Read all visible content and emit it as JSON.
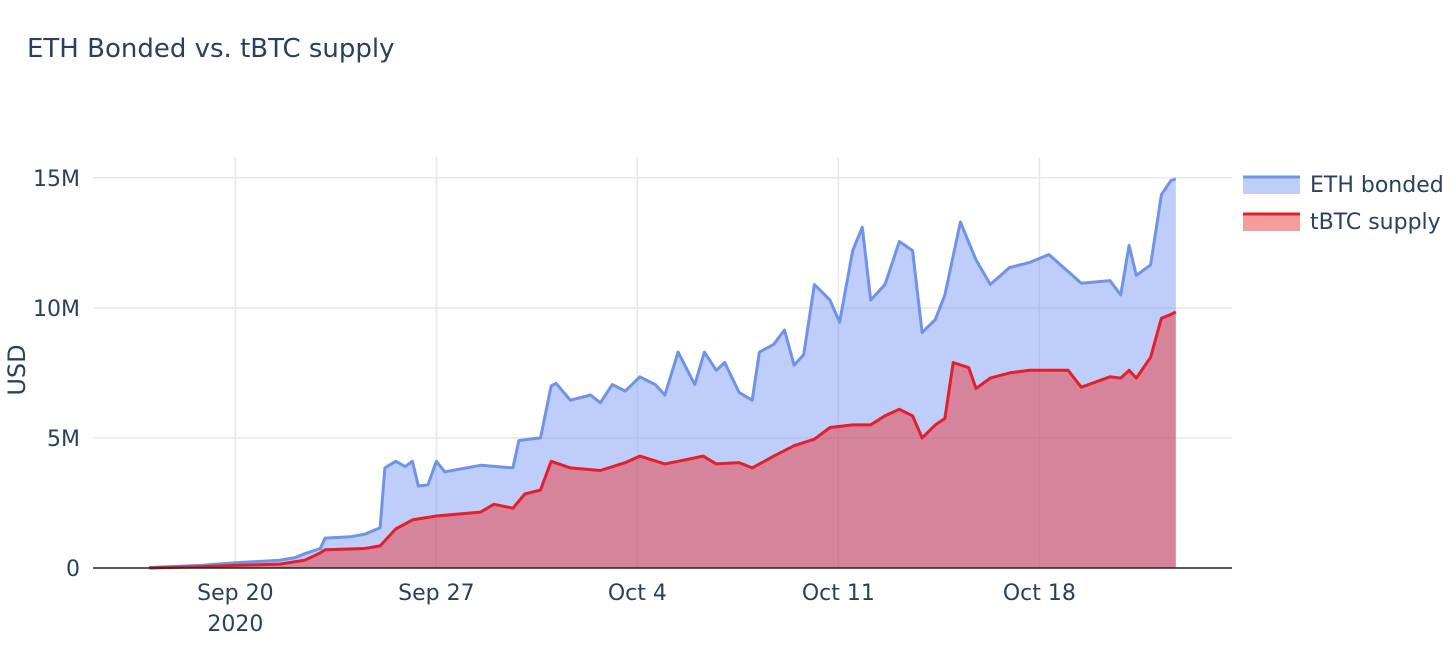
{
  "chart_data": {
    "type": "area",
    "title": "ETH Bonded vs. tBTC supply",
    "y_label": "USD",
    "grid": true,
    "legend": "top-right",
    "xlim": [
      "2020-09-15T01:00",
      "2020-10-24T17:00"
    ],
    "xticks": [
      {
        "value": "2020-09-20T00:00",
        "label": "Sep 20\n2020"
      },
      {
        "value": "2020-09-27T00:00",
        "label": "Sep 27"
      },
      {
        "value": "2020-10-04T00:00",
        "label": "Oct 4"
      },
      {
        "value": "2020-10-11T00:00",
        "label": "Oct 11"
      },
      {
        "value": "2020-10-18T00:00",
        "label": "Oct 18"
      }
    ],
    "ylim": [
      0,
      15800000
    ],
    "yticks": [
      0,
      {
        "value": 5000000,
        "label": "5M"
      },
      {
        "value": 10000000,
        "label": "10M"
      },
      {
        "value": 15000000,
        "label": "15M"
      }
    ],
    "series": [
      {
        "name": "ETH bonded",
        "color": "#6f93ea",
        "fill": "rgba(110,145,245,0.45)",
        "x": [
          "2020-09-17T00:00",
          "2020-09-18T19:00",
          "2020-09-20T00:00",
          "2020-09-21T13:00",
          "2020-09-22T02:00",
          "2020-09-22T10:00",
          "2020-09-22T23:00",
          "2020-09-23T03:00",
          "2020-09-24T00:00",
          "2020-09-24T12:00",
          "2020-09-25T01:00",
          "2020-09-25T05:00",
          "2020-09-25T14:00",
          "2020-09-25T22:00",
          "2020-09-26T04:00",
          "2020-09-26T09:00",
          "2020-09-26T17:00",
          "2020-09-27T00:00",
          "2020-09-27T07:00",
          "2020-09-28T13:00",
          "2020-09-29T16:00",
          "2020-09-29T21:00",
          "2020-09-30T15:00",
          "2020-10-01T00:00",
          "2020-10-01T04:00",
          "2020-10-01T16:00",
          "2020-10-02T09:00",
          "2020-10-02T17:00",
          "2020-10-03T03:00",
          "2020-10-03T14:00",
          "2020-10-04T02:00",
          "2020-10-04T15:00",
          "2020-10-04T23:00",
          "2020-10-05T10:00",
          "2020-10-06T00:00",
          "2020-10-06T08:00",
          "2020-10-06T18:00",
          "2020-10-07T01:00",
          "2020-10-07T13:00",
          "2020-10-08T00:00",
          "2020-10-08T06:00",
          "2020-10-08T18:00",
          "2020-10-09T03:00",
          "2020-10-09T11:00",
          "2020-10-09T19:00",
          "2020-10-10T04:00",
          "2020-10-10T17:00",
          "2020-10-11T01:00",
          "2020-10-11T12:00",
          "2020-10-11T20:00",
          "2020-10-12T03:00",
          "2020-10-12T15:00",
          "2020-10-13T03:00",
          "2020-10-13T14:00",
          "2020-10-13T22:00",
          "2020-10-14T09:00",
          "2020-10-14T17:00",
          "2020-10-15T06:00",
          "2020-10-15T19:00",
          "2020-10-16T07:00",
          "2020-10-16T23:00",
          "2020-10-17T16:00",
          "2020-10-18T08:00",
          "2020-10-19T11:00",
          "2020-10-20T11:00",
          "2020-10-20T20:00",
          "2020-10-21T03:00",
          "2020-10-21T09:00",
          "2020-10-21T21:00",
          "2020-10-22T06:00",
          "2020-10-22T14:00",
          "2020-10-22T18:00"
        ],
        "values": [
          20000,
          100000,
          200000,
          300000,
          400000,
          550000,
          750000,
          1150000,
          1200000,
          1300000,
          1550000,
          3850000,
          4100000,
          3900000,
          4100000,
          3150000,
          3200000,
          4100000,
          3700000,
          3950000,
          3850000,
          4900000,
          5000000,
          7000000,
          7100000,
          6450000,
          6650000,
          6350000,
          7050000,
          6800000,
          7350000,
          7050000,
          6650000,
          8300000,
          7050000,
          8300000,
          7600000,
          7900000,
          6750000,
          6450000,
          8300000,
          8600000,
          9150000,
          7800000,
          8200000,
          10900000,
          10300000,
          9450000,
          12200000,
          13100000,
          10300000,
          10900000,
          12550000,
          12200000,
          9050000,
          9550000,
          10500000,
          13300000,
          11850000,
          10900000,
          11550000,
          11750000,
          12050000,
          10950000,
          11050000,
          10500000,
          12400000,
          11250000,
          11650000,
          14350000,
          14900000,
          14950000
        ]
      },
      {
        "name": "tBTC supply",
        "color": "#e3202a",
        "fill": "rgba(235,60,60,0.5)",
        "x": [
          "2020-09-17T00:00",
          "2020-09-18T19:00",
          "2020-09-20T00:00",
          "2020-09-21T13:00",
          "2020-09-22T10:00",
          "2020-09-22T23:00",
          "2020-09-23T03:00",
          "2020-09-24T12:00",
          "2020-09-25T01:00",
          "2020-09-25T14:00",
          "2020-09-26T04:00",
          "2020-09-27T00:00",
          "2020-09-28T13:00",
          "2020-09-29T00:00",
          "2020-09-29T16:00",
          "2020-09-30T02:00",
          "2020-09-30T15:00",
          "2020-10-01T00:00",
          "2020-10-01T16:00",
          "2020-10-02T17:00",
          "2020-10-03T14:00",
          "2020-10-04T02:00",
          "2020-10-04T23:00",
          "2020-10-05T10:00",
          "2020-10-06T07:00",
          "2020-10-06T18:00",
          "2020-10-07T13:00",
          "2020-10-08T00:00",
          "2020-10-08T18:00",
          "2020-10-09T11:00",
          "2020-10-10T04:00",
          "2020-10-10T17:00",
          "2020-10-11T12:00",
          "2020-10-12T03:00",
          "2020-10-12T15:00",
          "2020-10-13T03:00",
          "2020-10-13T14:00",
          "2020-10-13T22:00",
          "2020-10-14T09:00",
          "2020-10-14T17:00",
          "2020-10-15T00:00",
          "2020-10-15T13:00",
          "2020-10-15T19:00",
          "2020-10-16T07:00",
          "2020-10-16T23:00",
          "2020-10-17T16:00",
          "2020-10-18T08:00",
          "2020-10-19T00:00",
          "2020-10-19T11:00",
          "2020-10-20T11:00",
          "2020-10-20T20:00",
          "2020-10-21T03:00",
          "2020-10-21T09:00",
          "2020-10-21T21:00",
          "2020-10-22T06:00",
          "2020-10-22T14:00",
          "2020-10-22T18:00"
        ],
        "values": [
          0,
          50000,
          100000,
          150000,
          300000,
          580000,
          700000,
          750000,
          850000,
          1500000,
          1850000,
          2000000,
          2150000,
          2450000,
          2300000,
          2850000,
          3000000,
          4100000,
          3850000,
          3750000,
          4050000,
          4300000,
          4000000,
          4100000,
          4300000,
          4000000,
          4050000,
          3850000,
          4300000,
          4700000,
          4950000,
          5400000,
          5500000,
          5500000,
          5850000,
          6100000,
          5850000,
          5000000,
          5500000,
          5750000,
          7900000,
          7700000,
          6900000,
          7300000,
          7500000,
          7600000,
          7600000,
          7600000,
          6950000,
          7350000,
          7300000,
          7600000,
          7300000,
          8100000,
          9600000,
          9750000,
          9850000
        ]
      }
    ]
  }
}
